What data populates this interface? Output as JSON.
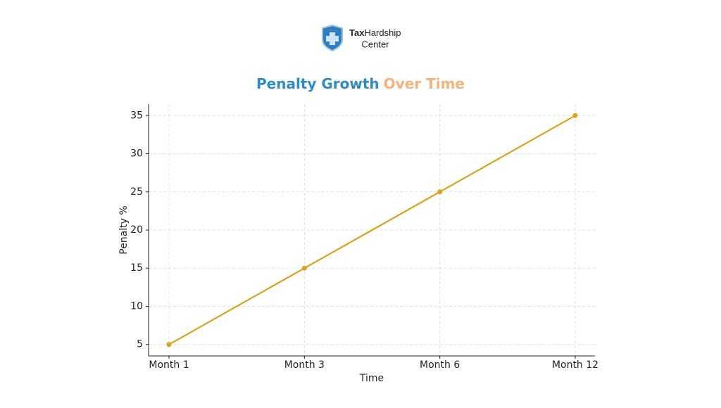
{
  "header": {
    "logo_bold": "Tax",
    "logo_regular": "Hardship",
    "logo_line2": "Center"
  },
  "chart_data": {
    "type": "line",
    "title": [
      "Penalty Growth",
      "Over Time"
    ],
    "title_colors": [
      "#2f8bc4",
      "#f4b27c"
    ],
    "x_label": "Time",
    "y_label": "Penalty %",
    "categories": [
      "Month 1",
      "Month 3",
      "Month 6",
      "Month 12"
    ],
    "values": [
      5,
      15,
      25,
      35
    ],
    "color": "#daa21f",
    "ylim": [
      3.5,
      36.5
    ],
    "yticks": [
      5,
      10,
      15,
      20,
      25,
      30,
      35
    ],
    "grid": true
  }
}
